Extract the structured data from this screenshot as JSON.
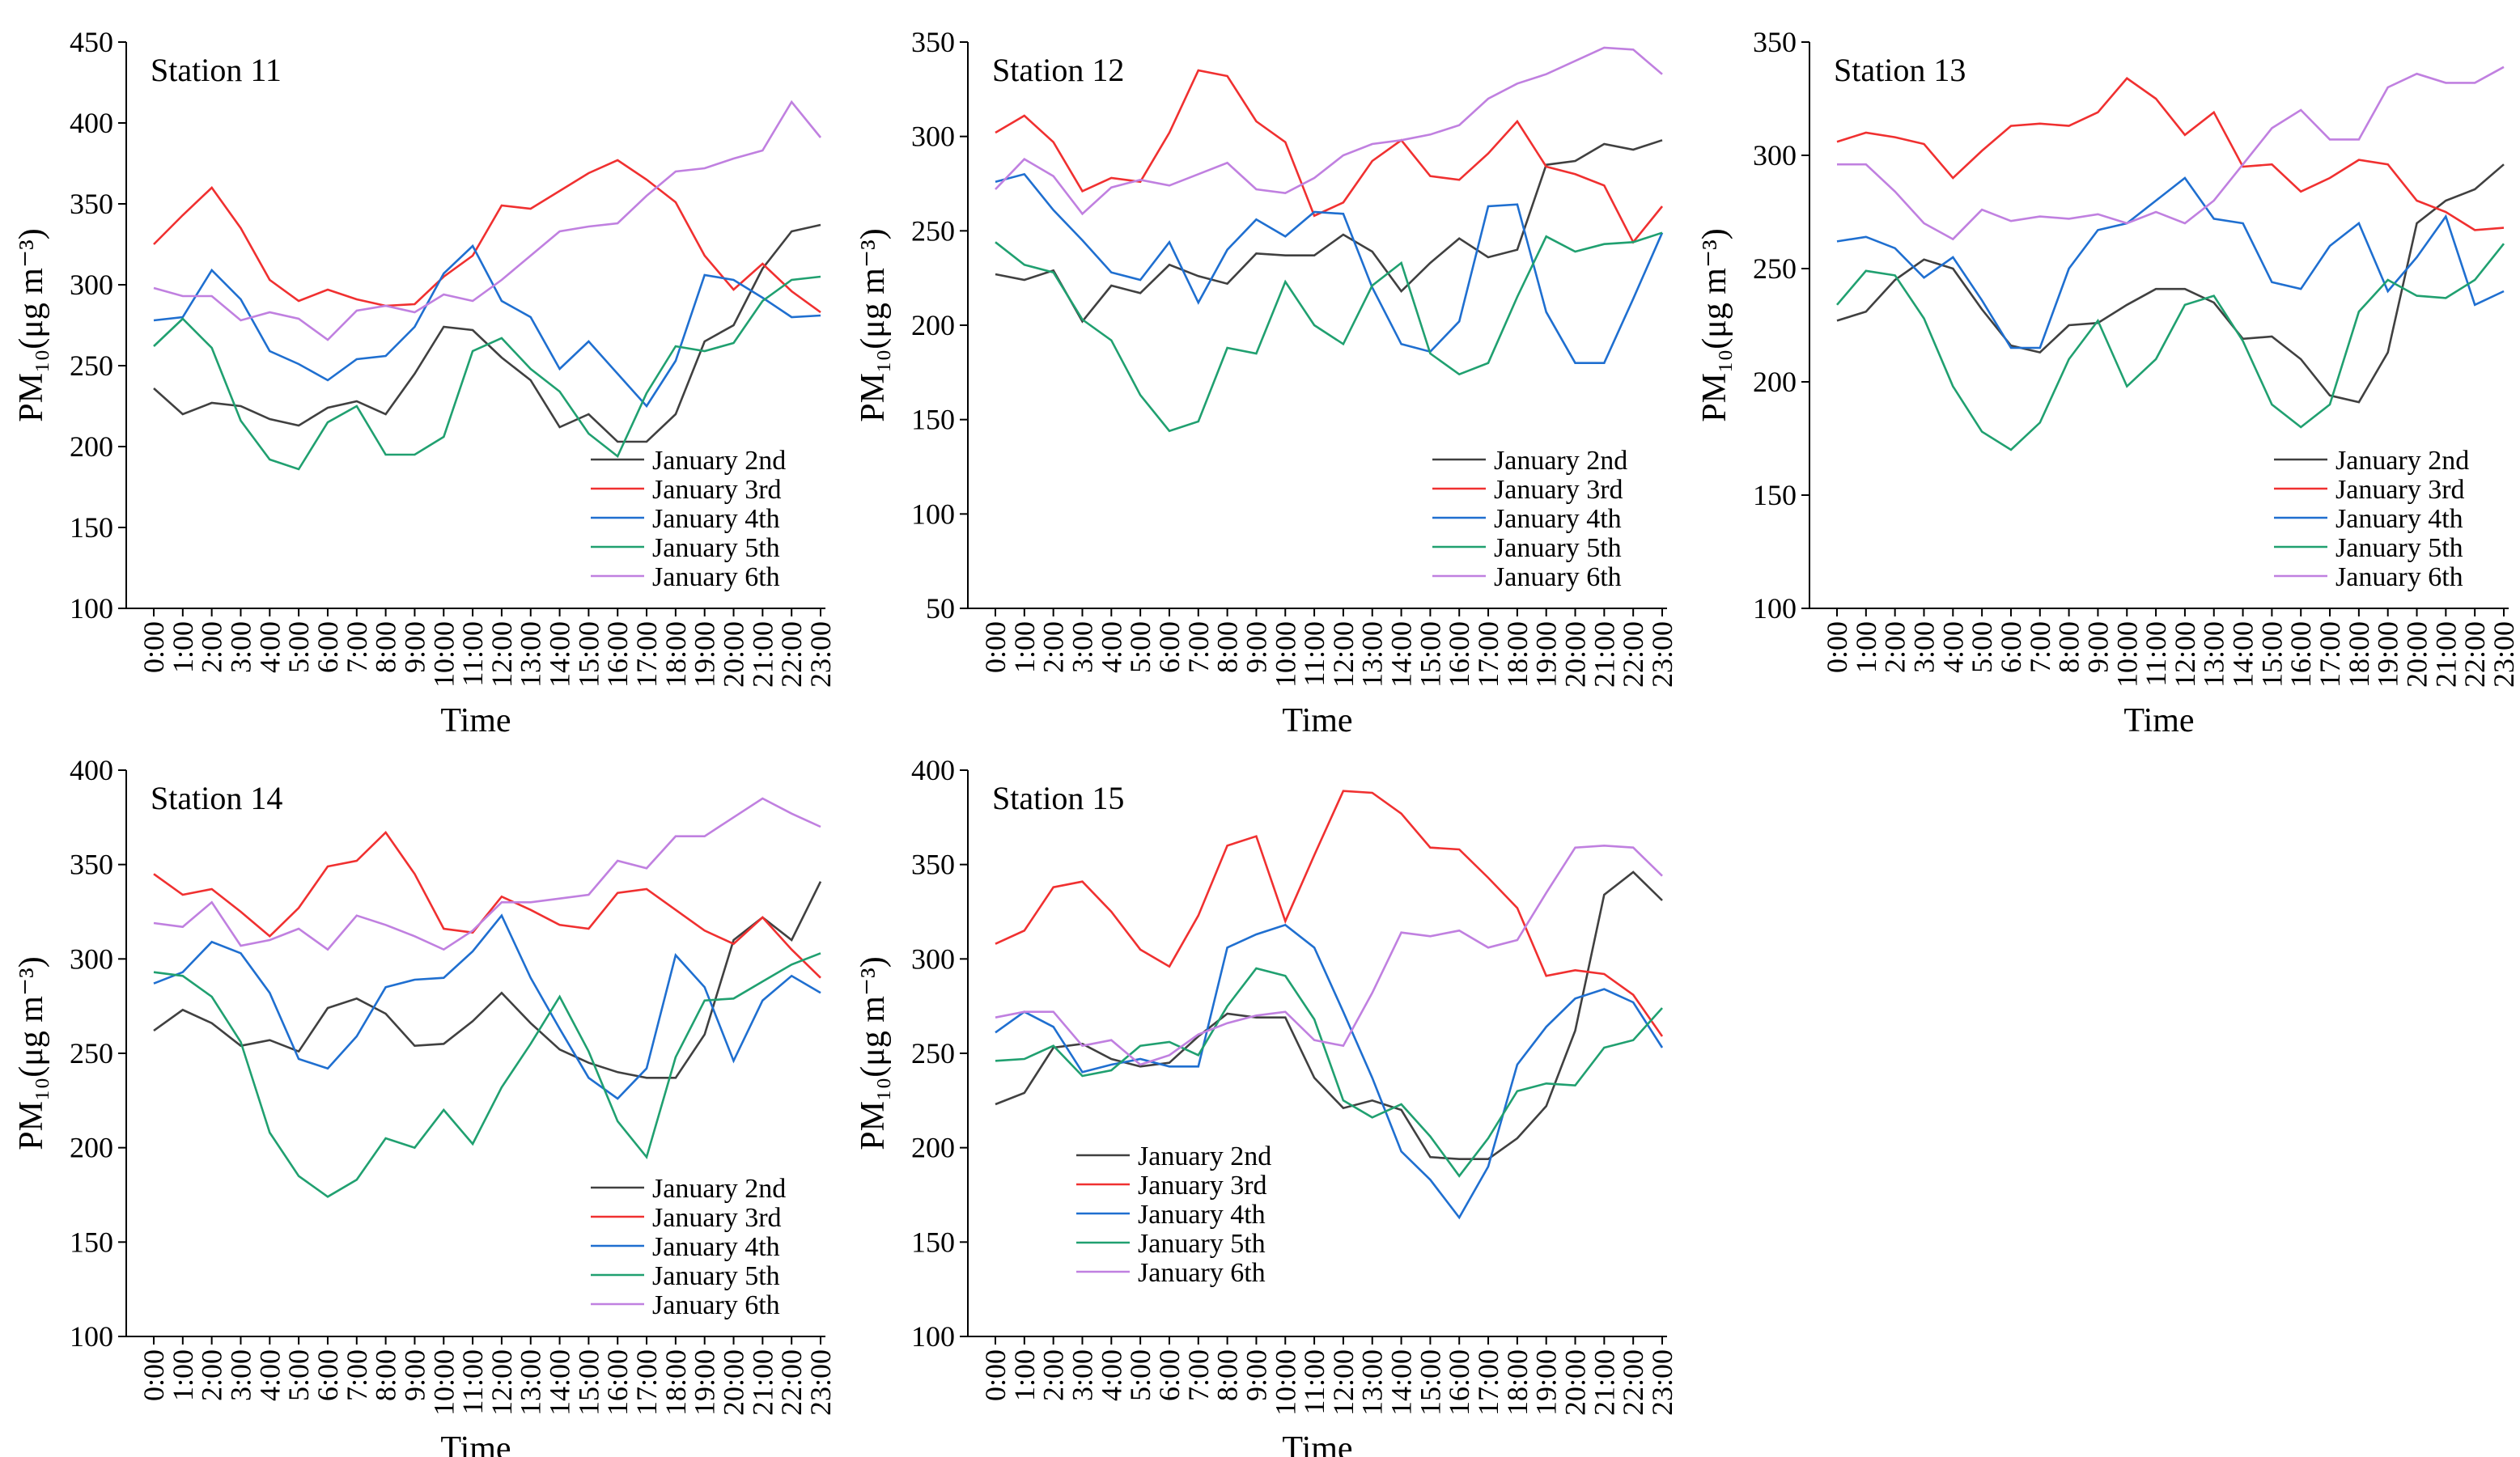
{
  "chart_data": [
    {
      "type": "line",
      "title": "Station 11",
      "xlabel": "Time",
      "ylabel": "PM₁₀(μg m⁻³)",
      "legend": "lower right",
      "categories": [
        "0:00",
        "1:00",
        "2:00",
        "3:00",
        "4:00",
        "5:00",
        "6:00",
        "7:00",
        "8:00",
        "9:00",
        "10:00",
        "11:00",
        "12:00",
        "13:00",
        "14:00",
        "15:00",
        "16:00",
        "17:00",
        "18:00",
        "19:00",
        "20:00",
        "21:00",
        "22:00",
        "23:00"
      ],
      "ylim": [
        100,
        450
      ],
      "yticks": [
        100,
        150,
        200,
        250,
        300,
        350,
        400,
        450
      ],
      "series": [
        {
          "name": "January 2nd",
          "color": "#404040",
          "values": [
            236,
            220,
            227,
            225,
            217,
            213,
            224,
            228,
            220,
            245,
            274,
            272,
            255,
            241,
            212,
            220,
            203,
            203,
            220,
            265,
            275,
            310,
            333,
            337
          ]
        },
        {
          "name": "January 3rd",
          "color": "#f03030",
          "values": [
            325,
            343,
            360,
            335,
            303,
            290,
            297,
            291,
            287,
            288,
            305,
            318,
            349,
            347,
            358,
            369,
            377,
            365,
            351,
            318,
            297,
            313,
            296,
            283
          ]
        },
        {
          "name": "January 4th",
          "color": "#1f6fd0",
          "values": [
            278,
            280,
            309,
            291,
            259,
            251,
            241,
            254,
            256,
            274,
            307,
            324,
            290,
            280,
            248,
            265,
            245,
            225,
            253,
            306,
            303,
            292,
            280,
            281
          ]
        },
        {
          "name": "January 5th",
          "color": "#20a070",
          "values": [
            262,
            279,
            261,
            216,
            192,
            186,
            215,
            225,
            195,
            195,
            206,
            259,
            267,
            248,
            234,
            208,
            194,
            233,
            262,
            259,
            264,
            290,
            303,
            305
          ]
        },
        {
          "name": "January 6th",
          "color": "#c080e0",
          "values": [
            298,
            293,
            293,
            278,
            283,
            279,
            266,
            284,
            287,
            283,
            294,
            290,
            303,
            318,
            333,
            336,
            338,
            355,
            370,
            372,
            378,
            383,
            413,
            391
          ]
        }
      ]
    },
    {
      "type": "line",
      "title": "Station 12",
      "xlabel": "Time",
      "ylabel": "PM₁₀(μg m⁻³)",
      "legend": "lower right",
      "categories": [
        "0:00",
        "1:00",
        "2:00",
        "3:00",
        "4:00",
        "5:00",
        "6:00",
        "7:00",
        "8:00",
        "9:00",
        "10:00",
        "11:00",
        "12:00",
        "13:00",
        "14:00",
        "15:00",
        "16:00",
        "17:00",
        "18:00",
        "19:00",
        "20:00",
        "21:00",
        "22:00",
        "23:00"
      ],
      "ylim": [
        50,
        350
      ],
      "yticks": [
        50,
        100,
        150,
        200,
        250,
        300,
        350
      ],
      "series": [
        {
          "name": "January 2nd",
          "color": "#404040",
          "values": [
            227,
            224,
            229,
            202,
            221,
            217,
            232,
            226,
            222,
            238,
            237,
            237,
            248,
            239,
            218,
            233,
            246,
            236,
            240,
            285,
            287,
            296,
            293,
            298
          ]
        },
        {
          "name": "January 3rd",
          "color": "#f03030",
          "values": [
            302,
            311,
            297,
            271,
            278,
            276,
            302,
            335,
            332,
            308,
            297,
            258,
            265,
            287,
            298,
            279,
            277,
            291,
            308,
            284,
            280,
            274,
            244,
            263
          ]
        },
        {
          "name": "January 4th",
          "color": "#1f6fd0",
          "values": [
            276,
            280,
            261,
            245,
            228,
            224,
            244,
            212,
            240,
            256,
            247,
            260,
            259,
            220,
            190,
            186,
            202,
            263,
            264,
            207,
            180,
            180,
            214,
            249
          ]
        },
        {
          "name": "January 5th",
          "color": "#20a070",
          "values": [
            244,
            232,
            228,
            203,
            192,
            163,
            144,
            149,
            188,
            185,
            223,
            200,
            190,
            221,
            233,
            185,
            174,
            180,
            215,
            247,
            239,
            243,
            244,
            249
          ]
        },
        {
          "name": "January 6th",
          "color": "#c080e0",
          "values": [
            272,
            288,
            279,
            259,
            273,
            277,
            274,
            280,
            286,
            272,
            270,
            278,
            290,
            296,
            298,
            301,
            306,
            320,
            328,
            333,
            340,
            347,
            346,
            333
          ]
        }
      ]
    },
    {
      "type": "line",
      "title": "Station 13",
      "xlabel": "Time",
      "ylabel": "PM₁₀(μg m⁻³)",
      "legend": "lower right",
      "categories": [
        "0:00",
        "1:00",
        "2:00",
        "3:00",
        "4:00",
        "5:00",
        "6:00",
        "7:00",
        "8:00",
        "9:00",
        "10:00",
        "11:00",
        "12:00",
        "13:00",
        "14:00",
        "15:00",
        "16:00",
        "17:00",
        "18:00",
        "19:00",
        "20:00",
        "21:00",
        "22:00",
        "23:00"
      ],
      "ylim": [
        100,
        350
      ],
      "yticks": [
        100,
        150,
        200,
        250,
        300,
        350
      ],
      "series": [
        {
          "name": "January 2nd",
          "color": "#404040",
          "values": [
            227,
            231,
            245,
            254,
            250,
            232,
            216,
            213,
            225,
            226,
            234,
            241,
            241,
            235,
            219,
            220,
            210,
            194,
            191,
            213,
            270,
            280,
            285,
            296
          ]
        },
        {
          "name": "January 3rd",
          "color": "#f03030",
          "values": [
            306,
            310,
            308,
            305,
            290,
            302,
            313,
            314,
            313,
            319,
            334,
            325,
            309,
            319,
            295,
            296,
            284,
            290,
            298,
            296,
            280,
            275,
            267,
            268
          ]
        },
        {
          "name": "January 4th",
          "color": "#1f6fd0",
          "values": [
            262,
            264,
            259,
            246,
            255,
            236,
            215,
            215,
            250,
            267,
            270,
            280,
            290,
            272,
            270,
            244,
            241,
            260,
            270,
            240,
            255,
            273,
            234,
            240
          ]
        },
        {
          "name": "January 5th",
          "color": "#20a070",
          "values": [
            234,
            249,
            247,
            228,
            198,
            178,
            170,
            182,
            210,
            227,
            198,
            210,
            234,
            238,
            218,
            190,
            180,
            190,
            231,
            245,
            238,
            237,
            245,
            261
          ]
        },
        {
          "name": "January 6th",
          "color": "#c080e0",
          "values": [
            296,
            296,
            284,
            270,
            263,
            276,
            271,
            273,
            272,
            274,
            270,
            275,
            270,
            280,
            296,
            312,
            320,
            307,
            307,
            330,
            336,
            332,
            332,
            339
          ]
        }
      ]
    },
    {
      "type": "line",
      "title": "Station 14",
      "xlabel": "Time",
      "ylabel": "PM₁₀(μg m⁻³)",
      "legend": "lower right",
      "categories": [
        "0:00",
        "1:00",
        "2:00",
        "3:00",
        "4:00",
        "5:00",
        "6:00",
        "7:00",
        "8:00",
        "9:00",
        "10:00",
        "11:00",
        "12:00",
        "13:00",
        "14:00",
        "15:00",
        "16:00",
        "17:00",
        "18:00",
        "19:00",
        "20:00",
        "21:00",
        "22:00",
        "23:00"
      ],
      "ylim": [
        100,
        400
      ],
      "yticks": [
        100,
        150,
        200,
        250,
        300,
        350,
        400
      ],
      "series": [
        {
          "name": "January 2nd",
          "color": "#404040",
          "values": [
            262,
            273,
            266,
            254,
            257,
            251,
            274,
            279,
            271,
            254,
            255,
            267,
            282,
            266,
            252,
            245,
            240,
            237,
            237,
            260,
            310,
            322,
            310,
            341
          ]
        },
        {
          "name": "January 3rd",
          "color": "#f03030",
          "values": [
            345,
            334,
            337,
            325,
            312,
            327,
            349,
            352,
            367,
            345,
            316,
            314,
            333,
            326,
            318,
            316,
            335,
            337,
            326,
            315,
            308,
            322,
            305,
            290
          ]
        },
        {
          "name": "January 4th",
          "color": "#1f6fd0",
          "values": [
            287,
            293,
            309,
            303,
            282,
            247,
            242,
            259,
            285,
            289,
            290,
            304,
            323,
            290,
            263,
            237,
            226,
            242,
            302,
            285,
            246,
            278,
            291,
            282
          ]
        },
        {
          "name": "January 5th",
          "color": "#20a070",
          "values": [
            293,
            291,
            280,
            256,
            208,
            185,
            174,
            183,
            205,
            200,
            220,
            202,
            232,
            255,
            280,
            251,
            214,
            195,
            248,
            278,
            279,
            288,
            297,
            303
          ]
        },
        {
          "name": "January 6th",
          "color": "#c080e0",
          "values": [
            319,
            317,
            330,
            307,
            310,
            316,
            305,
            323,
            318,
            312,
            305,
            315,
            330,
            330,
            332,
            334,
            352,
            348,
            365,
            365,
            375,
            385,
            377,
            370
          ]
        }
      ]
    },
    {
      "type": "line",
      "title": "Station 15",
      "xlabel": "Time",
      "ylabel": "PM₁₀(μg m⁻³)",
      "legend": "lower left",
      "categories": [
        "0:00",
        "1:00",
        "2:00",
        "3:00",
        "4:00",
        "5:00",
        "6:00",
        "7:00",
        "8:00",
        "9:00",
        "10:00",
        "11:00",
        "12:00",
        "13:00",
        "14:00",
        "15:00",
        "16:00",
        "17:00",
        "18:00",
        "19:00",
        "20:00",
        "21:00",
        "22:00",
        "23:00"
      ],
      "ylim": [
        100,
        400
      ],
      "yticks": [
        100,
        150,
        200,
        250,
        300,
        350,
        400
      ],
      "series": [
        {
          "name": "January 2nd",
          "color": "#404040",
          "values": [
            223,
            229,
            253,
            255,
            247,
            243,
            245,
            259,
            271,
            269,
            269,
            237,
            221,
            225,
            220,
            195,
            194,
            194,
            205,
            222,
            262,
            334,
            346,
            331
          ]
        },
        {
          "name": "January 3rd",
          "color": "#f03030",
          "values": [
            308,
            315,
            338,
            341,
            325,
            305,
            296,
            323,
            360,
            365,
            320,
            355,
            389,
            388,
            377,
            359,
            358,
            343,
            327,
            291,
            294,
            292,
            281,
            259
          ]
        },
        {
          "name": "January 4th",
          "color": "#1f6fd0",
          "values": [
            261,
            272,
            264,
            240,
            244,
            247,
            243,
            243,
            306,
            313,
            318,
            306,
            272,
            237,
            198,
            183,
            163,
            190,
            244,
            264,
            279,
            284,
            277,
            253
          ]
        },
        {
          "name": "January 5th",
          "color": "#20a070",
          "values": [
            246,
            247,
            254,
            238,
            241,
            254,
            256,
            249,
            275,
            295,
            291,
            268,
            225,
            216,
            223,
            206,
            185,
            205,
            230,
            234,
            233,
            253,
            257,
            274
          ]
        },
        {
          "name": "January 6th",
          "color": "#c080e0",
          "values": [
            269,
            272,
            272,
            254,
            257,
            244,
            249,
            260,
            266,
            270,
            272,
            257,
            254,
            282,
            314,
            312,
            315,
            306,
            310,
            335,
            359,
            360,
            359,
            344
          ]
        }
      ]
    }
  ]
}
